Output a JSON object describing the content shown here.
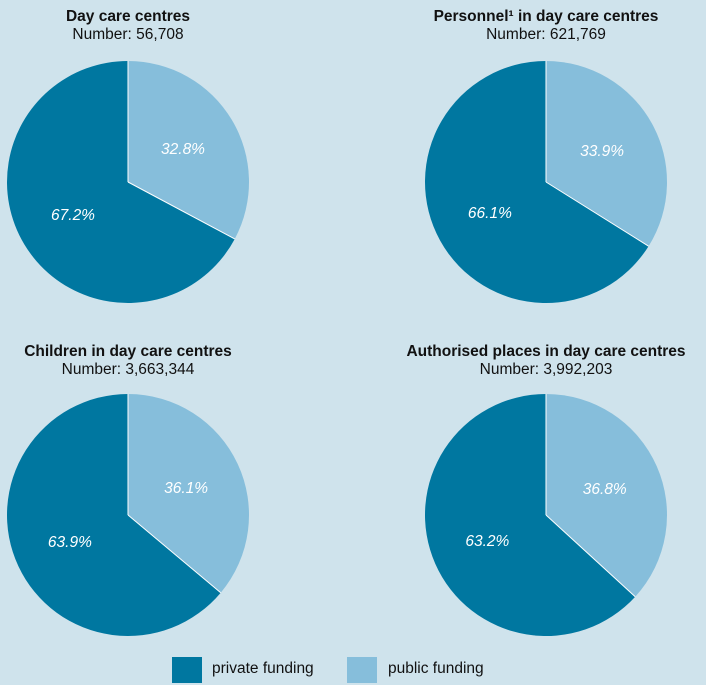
{
  "chart_data": [
    {
      "type": "pie",
      "title": "Day care centres",
      "subtitle": "Number: 56,708",
      "categories": [
        "private funding",
        "public funding"
      ],
      "values": [
        67.2,
        32.8
      ],
      "labels": [
        "67.2%",
        "32.8%"
      ]
    },
    {
      "type": "pie",
      "title": "Personnel¹ in day care centres",
      "subtitle": "Number: 621,769",
      "categories": [
        "private funding",
        "public funding"
      ],
      "values": [
        66.1,
        33.9
      ],
      "labels": [
        "66.1%",
        "33.9%"
      ]
    },
    {
      "type": "pie",
      "title": "Children in day care centres",
      "subtitle": "Number: 3,663,344",
      "categories": [
        "private funding",
        "public funding"
      ],
      "values": [
        63.9,
        36.1
      ],
      "labels": [
        "63.9%",
        "36.1%"
      ]
    },
    {
      "type": "pie",
      "title": "Authorised places in day care centres",
      "subtitle": "Number: 3,992,203",
      "categories": [
        "private funding",
        "public funding"
      ],
      "values": [
        63.2,
        36.8
      ],
      "labels": [
        "63.2%",
        "36.8%"
      ]
    }
  ],
  "legend": [
    {
      "label": "private funding",
      "color": "#0077a0"
    },
    {
      "label": "public funding",
      "color": "#86bedb"
    }
  ],
  "colors": {
    "private": "#0077a0",
    "public": "#86bedb",
    "background": "#cfe3ec"
  }
}
